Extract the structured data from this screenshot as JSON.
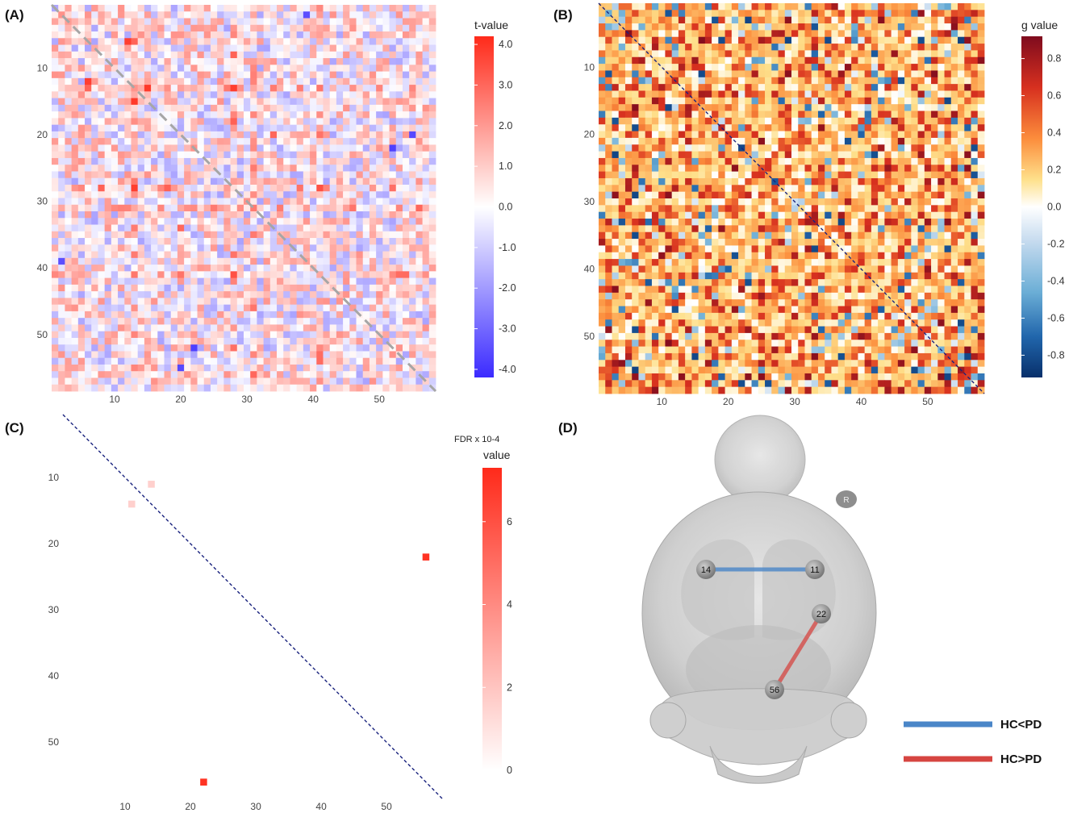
{
  "chart_data": [
    {
      "panel": "(A)",
      "type": "heatmap",
      "matrix_size": 58,
      "xticks": [
        "10",
        "20",
        "30",
        "40",
        "50"
      ],
      "yticks": [
        "10",
        "20",
        "30",
        "40",
        "50"
      ],
      "tick_values": [
        10,
        20,
        30,
        40,
        50
      ],
      "legend_title": "t-value",
      "legend_ticks": [
        "4.0",
        "3.0",
        "2.0",
        "1.0",
        "0.0",
        "-1.0",
        "-2.0",
        "-3.0",
        "-4.0"
      ],
      "legend_tick_values": [
        4,
        3,
        2,
        1,
        0,
        -1,
        -2,
        -3,
        -4
      ],
      "vmin": -4.2,
      "vmax": 4.2,
      "colors": {
        "low": "#3b2bff",
        "mid": "#ffffff",
        "high": "#ff2a1a",
        "diagonal": "#a6a6a6"
      },
      "diagonal": "dashed-gray",
      "highlights": [
        {
          "row": 13,
          "col": 15,
          "value": 3.9
        },
        {
          "row": 6,
          "col": 12,
          "value": 3.8
        },
        {
          "row": 31,
          "col": 31,
          "value": 2.6
        },
        {
          "row": 20,
          "col": 55,
          "value": -3.6
        },
        {
          "row": 39,
          "col": 2,
          "value": -3.5
        },
        {
          "row": 52,
          "col": 22,
          "value": -3.8
        },
        {
          "row": 34,
          "col": 20,
          "value": 3.0
        }
      ]
    },
    {
      "panel": "(B)",
      "type": "heatmap",
      "matrix_size": 58,
      "xticks": [
        "10",
        "20",
        "30",
        "40",
        "50"
      ],
      "yticks": [
        "10",
        "20",
        "30",
        "40",
        "50"
      ],
      "tick_values": [
        10,
        20,
        30,
        40,
        50
      ],
      "legend_title": "g value",
      "legend_ticks": [
        "0.8",
        "0.6",
        "0.4",
        "0.2",
        "0.0",
        "-0.2",
        "-0.4",
        "-0.6",
        "-0.8"
      ],
      "legend_tick_values": [
        0.8,
        0.6,
        0.4,
        0.2,
        0.0,
        -0.2,
        -0.4,
        -0.6,
        -0.8
      ],
      "vmin": -0.92,
      "vmax": 0.92,
      "colors": {
        "diagonal": "#1a237e"
      },
      "diagonal": "dashed-navy"
    },
    {
      "panel": "(C)",
      "type": "heatmap",
      "matrix_size": 58,
      "xticks": [
        "10",
        "20",
        "30",
        "40",
        "50"
      ],
      "yticks": [
        "10",
        "20",
        "30",
        "40",
        "50"
      ],
      "tick_values": [
        10,
        20,
        30,
        40,
        50
      ],
      "legend_title_top": "FDR x 10-4",
      "legend_title": "value",
      "legend_ticks": [
        "6",
        "4",
        "2",
        "0"
      ],
      "legend_tick_values": [
        6,
        4,
        2,
        0
      ],
      "vmin": 0,
      "vmax": 7.3,
      "colors": {
        "low": "#ffffff",
        "high": "#ff2a1a",
        "diagonal": "#1a237e"
      },
      "diagonal": "dashed-navy",
      "cells": [
        {
          "row": 11,
          "col": 14,
          "value": 1.6
        },
        {
          "row": 14,
          "col": 11,
          "value": 1.6
        },
        {
          "row": 22,
          "col": 56,
          "value": 7.0
        },
        {
          "row": 56,
          "col": 22,
          "value": 7.0
        }
      ]
    }
  ],
  "panels": {
    "a": {
      "label": "(A)"
    },
    "b": {
      "label": "(B)"
    },
    "c": {
      "label": "(C)"
    },
    "d": {
      "label": "(D)"
    }
  },
  "brain": {
    "orientation_marker": "R",
    "nodes": [
      {
        "id": "14",
        "label": "14"
      },
      {
        "id": "11",
        "label": "11"
      },
      {
        "id": "22",
        "label": "22"
      },
      {
        "id": "56",
        "label": "56"
      }
    ],
    "edges": [
      {
        "from": "14",
        "to": "11",
        "type": "HC<PD",
        "color": "#4a86c8"
      },
      {
        "from": "22",
        "to": "56",
        "type": "HC>PD",
        "color": "#d64541"
      }
    ],
    "legend": [
      {
        "label": "HC<PD",
        "color": "#4a86c8"
      },
      {
        "label": "HC>PD",
        "color": "#d64541"
      }
    ]
  }
}
